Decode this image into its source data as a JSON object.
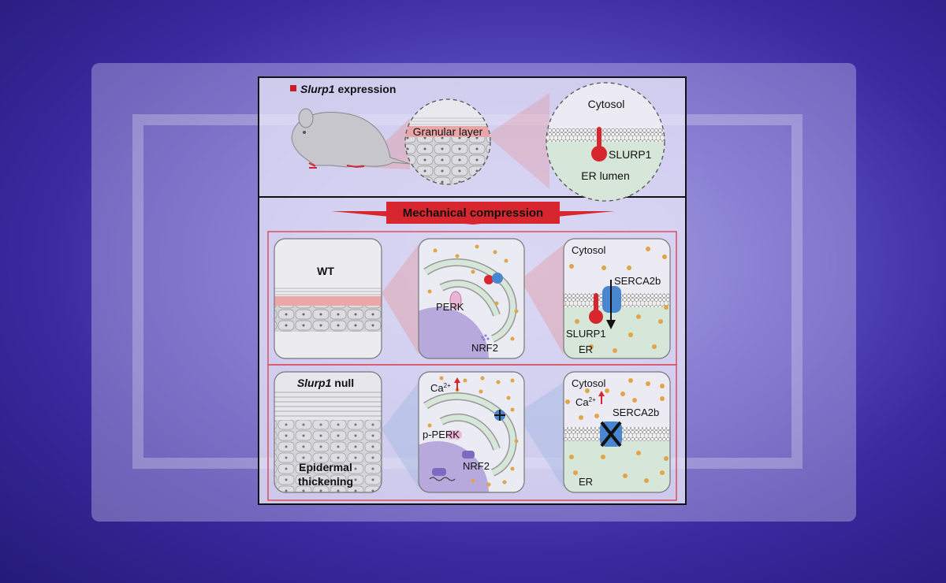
{
  "top": {
    "legend_gene": "Slurp1",
    "legend_suffix": " expression",
    "granular_layer": "Granular layer",
    "cytosol": "Cytosol",
    "slurp1": "SLURP1",
    "er_lumen": "ER lumen"
  },
  "banner": "Mechanical compression",
  "wt": {
    "label": "WT",
    "perk": "PERK",
    "nrf2": "NRF2",
    "cytosol": "Cytosol",
    "serca": "SERCA2b",
    "slurp1": "SLURP1",
    "er": "ER"
  },
  "null": {
    "label_gene": "Slurp1",
    "label_suffix": " null",
    "thickening_1": "Epidermal",
    "thickening_2": "thickening",
    "ca": "Ca",
    "ca_sup": "2+",
    "pperk": "p-PERK",
    "nrf2": "NRF2",
    "cytosol": "Cytosol",
    "serca": "SERCA2b",
    "er": "ER"
  },
  "colors": {
    "slurp1_red": "#d8262e",
    "serca_blue": "#4a86d0",
    "calcium": "#e0a548",
    "er_green": "#d6e6d8",
    "nucleus": "#b7a9dc"
  }
}
